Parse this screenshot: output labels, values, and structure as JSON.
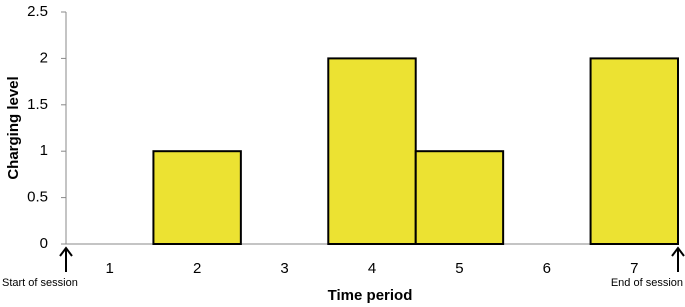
{
  "chart_data": {
    "type": "bar",
    "x_label": "Time period",
    "y_label": "Charging level",
    "categories": [
      "1",
      "2",
      "3",
      "4",
      "5",
      "6",
      "7"
    ],
    "values": [
      0,
      1,
      0,
      2,
      1,
      0,
      2
    ],
    "color": "#ece232",
    "ylim": [
      0,
      2.5
    ],
    "yticks": [
      0,
      0.5,
      1,
      1.5,
      2,
      2.5
    ],
    "grid": false,
    "annotations": [
      "Start of session",
      "End of session"
    ]
  }
}
